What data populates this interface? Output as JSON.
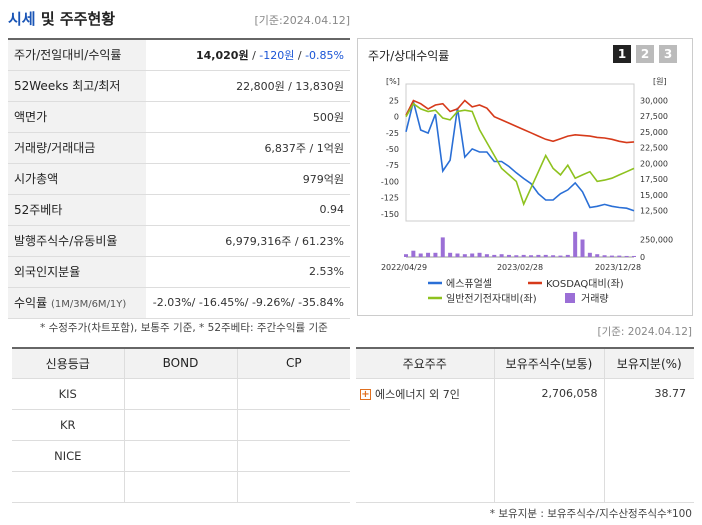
{
  "header": {
    "title_main": "시세",
    "title_rest": " 및 주주현황",
    "date": "[기준:2024.04.12]"
  },
  "quote_rows": [
    {
      "label": "주가/전일대비/수익률",
      "value_main": "14,020원",
      "value_sep1": " / ",
      "value_change": "-120원",
      "value_sep2": " / ",
      "value_rate": "-0.85%"
    },
    {
      "label": "52Weeks 최고/최저",
      "value": "22,800원 / 13,830원"
    },
    {
      "label": "액면가",
      "value": "500원"
    },
    {
      "label": "거래량/거래대금",
      "value": "6,837주 / 1억원"
    },
    {
      "label": "시가총액",
      "value": "979억원"
    },
    {
      "label": "52주베타",
      "value": "0.94"
    },
    {
      "label": "발행주식수/유동비율",
      "value": "6,979,316주 / 61.23%"
    },
    {
      "label": "외국인지분율",
      "value": "2.53%"
    },
    {
      "label": "수익률",
      "label_sub": "(1M/3M/6M/1Y)",
      "value": "-2.03%/ -16.45%/ -9.26%/ -35.84%"
    }
  ],
  "notes": {
    "left": "* 수정주가(차트포함), 보통주 기준, * 52주베타: 주간수익률 기준",
    "right_date": "[기준: 2024.04.12]",
    "holder": "* 보유지분 : 보유주식수/지수산정주식수*100"
  },
  "chart_panel": {
    "title": "주가/상대수익률",
    "tabs": [
      "1",
      "2",
      "3"
    ]
  },
  "chart_data": {
    "type": "line",
    "left_axis": {
      "unit": "[%]",
      "ticks": [
        25,
        0,
        -25,
        -50,
        -75,
        -100,
        -125,
        -150
      ],
      "range": [
        -155,
        35
      ]
    },
    "right_axis": {
      "unit": "[원]",
      "ticks": [
        30000,
        27500,
        25000,
        22500,
        20000,
        17500,
        15000,
        12500
      ],
      "range": [
        11500,
        31000
      ]
    },
    "volume_axis": {
      "ticks": [
        250000,
        0
      ],
      "range": [
        0,
        300000
      ]
    },
    "x_labels": [
      "2022/04/29",
      "2023/02/28",
      "2023/12/28"
    ],
    "series": [
      {
        "name": "에스퓨얼셀",
        "color": "#2a6fd6",
        "axis": "right",
        "values": [
          25000,
          29800,
          25300,
          24800,
          27800,
          18800,
          20500,
          28800,
          21000,
          22300,
          21800,
          21800,
          20300,
          20300,
          19500,
          18500,
          17600,
          16800,
          15200,
          14200,
          14200,
          15200,
          15800,
          16900,
          15500,
          13000,
          13200,
          13500,
          13200,
          13000,
          12900,
          12500
        ]
      },
      {
        "name": "KOSDAQ대비(좌)",
        "color": "#d63a1a",
        "axis": "left",
        "values": [
          2,
          25,
          20,
          12,
          18,
          20,
          8,
          12,
          25,
          15,
          18,
          13,
          0,
          -5,
          -10,
          -15,
          -20,
          -25,
          -30,
          -35,
          -38,
          -34,
          -30,
          -28,
          -29,
          -30,
          -32,
          -33,
          -35,
          -38,
          -40,
          -39
        ]
      },
      {
        "name": "일반전기전자대비(좌)",
        "color": "#8ec21f",
        "axis": "left",
        "values": [
          0,
          20,
          12,
          8,
          10,
          -2,
          -5,
          8,
          10,
          8,
          -20,
          -40,
          -60,
          -80,
          -90,
          -100,
          -135,
          -110,
          -85,
          -60,
          -80,
          -90,
          -75,
          -95,
          -90,
          -85,
          -100,
          -98,
          -95,
          -90,
          -85,
          -80
        ]
      },
      {
        "name": "거래량",
        "color": "#9b6fd6",
        "axis": "volume",
        "values": [
          40000,
          90000,
          50000,
          60000,
          60000,
          280000,
          60000,
          50000,
          40000,
          50000,
          60000,
          40000,
          30000,
          40000,
          30000,
          25000,
          30000,
          25000,
          30000,
          30000,
          25000,
          20000,
          30000,
          360000,
          250000,
          60000,
          40000,
          25000,
          20000,
          20000,
          15000,
          15000
        ]
      }
    ]
  },
  "credit_table": {
    "headers": [
      "신용등급",
      "BOND",
      "CP"
    ],
    "rows": [
      "KIS",
      "KR",
      "NICE",
      ""
    ]
  },
  "holder_table": {
    "headers": [
      "주요주주",
      "보유주식수(보통)",
      "보유지분(%)"
    ],
    "rows": [
      {
        "name": "에스에너지 외 7인",
        "shares": "2,706,058",
        "ratio": "38.77"
      }
    ]
  }
}
